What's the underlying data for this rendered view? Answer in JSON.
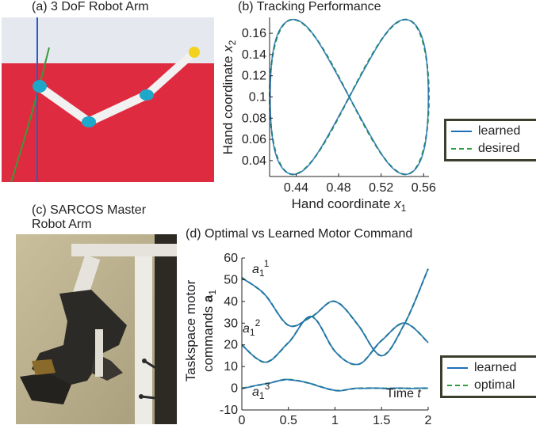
{
  "panels": {
    "a": {
      "title": "(a) 3 DoF Robot Arm"
    },
    "b": {
      "title": "(b) Tracking Performance"
    },
    "c": {
      "title_line1": "(c) SARCOS Master",
      "title_line2": "Robot Arm"
    },
    "d": {
      "title": "(d) Optimal vs Learned Motor Command"
    }
  },
  "colors": {
    "learned": "#1f6fb5",
    "desired": "#2e9e3e",
    "optimal": "#2e9e3e",
    "sim_red": "#df2b3f",
    "sim_sky": "#e6e8ef",
    "joint": "#1ea7c9",
    "end_effector": "#f2d21c"
  },
  "chart_data": [
    {
      "type": "line",
      "title": "(b) Tracking Performance",
      "xlabel": "Hand coordinate x1",
      "ylabel": "Hand coordinate x2",
      "xlim": [
        0.415,
        0.565
      ],
      "ylim": [
        0.025,
        0.175
      ],
      "xticks": [
        "0.44",
        "0.48",
        "0.52",
        "0.56"
      ],
      "yticks": [
        "0.04",
        "0.06",
        "0.08",
        "0.1",
        "0.12",
        "0.14",
        "0.16"
      ],
      "curve": "figure-eight (Lissajous), center x1=0.49, x2=0.1, x1 amplitude 0.075, x2 amplitude 0.073",
      "series": [
        {
          "name": "learned",
          "style": "solid"
        },
        {
          "name": "desired",
          "style": "dashed"
        }
      ],
      "legend": "right"
    },
    {
      "type": "line",
      "title": "(d) Optimal vs Learned Motor Command",
      "xlabel": "Time t",
      "ylabel": "Taskspace motor commands a1",
      "xlim": [
        0,
        2
      ],
      "ylim": [
        -10,
        60
      ],
      "xticks": [
        "0",
        "0.5",
        "1",
        "1.5",
        "2"
      ],
      "yticks": [
        "-10",
        "0",
        "10",
        "20",
        "30",
        "40",
        "50",
        "60"
      ],
      "x": [
        0,
        0.25,
        0.5,
        0.75,
        1.0,
        1.25,
        1.5,
        1.75,
        2.0
      ],
      "series": [
        {
          "name": "learned",
          "style": "solid"
        },
        {
          "name": "optimal",
          "style": "dashed"
        }
      ],
      "curves": [
        {
          "label_base": "a1",
          "label_sup": "1",
          "values": [
            51,
            43,
            29,
            33,
            40,
            29,
            15,
            30,
            55
          ]
        },
        {
          "label_base": "a1",
          "label_sup": "2",
          "values": [
            20,
            12,
            21,
            33,
            17,
            11,
            22,
            30,
            21
          ]
        },
        {
          "label_base": "a1",
          "label_sup": "3",
          "values": [
            0,
            2,
            4,
            2,
            -1,
            0,
            0,
            0,
            0
          ]
        }
      ],
      "legend": "bottom-right"
    }
  ]
}
